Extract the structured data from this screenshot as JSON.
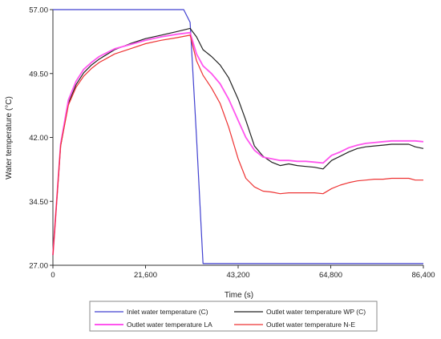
{
  "chart_data": {
    "type": "line",
    "xlabel": "Time (s)",
    "ylabel": "Water temperature (°C)",
    "xlim": [
      0,
      86400
    ],
    "ylim": [
      27.0,
      57.0
    ],
    "xticks": [
      "0",
      "21,600",
      "43,200",
      "64,800",
      "86,400"
    ],
    "xtick_values": [
      0,
      21600,
      43200,
      64800,
      86400
    ],
    "yticks": [
      "27.00",
      "34.50",
      "42.00",
      "49.50",
      "57.00"
    ],
    "ytick_values": [
      27.0,
      34.5,
      42.0,
      49.5,
      57.0
    ],
    "grid": false,
    "legend_position": "bottom",
    "series": [
      {
        "name": "Inlet water temperature (C)",
        "color": "#4040d0",
        "x": [
          0,
          30500,
          32000,
          33500,
          35000,
          86400
        ],
        "y": [
          57.0,
          57.0,
          55.5,
          42.0,
          27.2,
          27.2
        ]
      },
      {
        "name": "Outlet water temperature WP (C)",
        "color": "#222222",
        "x": [
          0,
          1800,
          3600,
          5400,
          7200,
          9000,
          10800,
          14400,
          18000,
          21600,
          25200,
          28800,
          32000,
          33500,
          35000,
          37000,
          39000,
          41000,
          43200,
          45000,
          47000,
          49000,
          51000,
          53000,
          55000,
          57000,
          59000,
          61000,
          63000,
          65000,
          67000,
          69000,
          71000,
          73000,
          75000,
          77000,
          79000,
          81000,
          83000,
          84500,
          86400
        ],
        "y": [
          28.2,
          41.0,
          46.0,
          48.2,
          49.6,
          50.5,
          51.2,
          52.3,
          53.0,
          53.6,
          54.0,
          54.4,
          54.8,
          53.8,
          52.3,
          51.5,
          50.5,
          49.0,
          46.5,
          44.0,
          41.0,
          39.8,
          39.1,
          38.7,
          38.9,
          38.7,
          38.6,
          38.5,
          38.3,
          39.3,
          39.8,
          40.3,
          40.7,
          40.9,
          41.0,
          41.1,
          41.2,
          41.2,
          41.2,
          40.9,
          40.7
        ]
      },
      {
        "name": "Outlet water temperature LA",
        "color": "#ff55ee",
        "x": [
          0,
          1800,
          3600,
          5400,
          7200,
          9000,
          10800,
          14400,
          18000,
          21600,
          25200,
          28800,
          32000,
          33500,
          35000,
          37000,
          39000,
          41000,
          43200,
          45000,
          47000,
          49000,
          51000,
          53000,
          55000,
          57000,
          59000,
          61000,
          63000,
          65000,
          67000,
          69000,
          71000,
          73000,
          75000,
          77000,
          79000,
          81000,
          83000,
          84500,
          86400
        ],
        "y": [
          28.2,
          41.2,
          46.4,
          48.6,
          50.0,
          50.8,
          51.5,
          52.4,
          52.9,
          53.4,
          53.8,
          54.1,
          54.3,
          51.8,
          50.4,
          49.5,
          48.3,
          46.5,
          44.0,
          42.0,
          40.5,
          39.7,
          39.5,
          39.3,
          39.3,
          39.2,
          39.2,
          39.1,
          39.0,
          39.9,
          40.3,
          40.8,
          41.1,
          41.3,
          41.4,
          41.5,
          41.6,
          41.6,
          41.6,
          41.6,
          41.5
        ]
      },
      {
        "name": "Outlet water temperature N-E",
        "color": "#ee3333",
        "x": [
          0,
          1800,
          3600,
          5400,
          7200,
          9000,
          10800,
          14400,
          18000,
          21600,
          25200,
          28800,
          32000,
          33500,
          35000,
          37000,
          39000,
          41000,
          43200,
          45000,
          47000,
          49000,
          51000,
          53000,
          55000,
          57000,
          59000,
          61000,
          63000,
          65000,
          67000,
          69000,
          71000,
          73000,
          75000,
          77000,
          79000,
          81000,
          83000,
          84500,
          86400
        ],
        "y": [
          28.2,
          41.0,
          45.8,
          47.9,
          49.2,
          50.1,
          50.8,
          51.8,
          52.4,
          53.0,
          53.4,
          53.7,
          54.0,
          51.0,
          49.3,
          47.8,
          46.0,
          43.2,
          39.5,
          37.2,
          36.2,
          35.7,
          35.6,
          35.4,
          35.5,
          35.5,
          35.5,
          35.5,
          35.4,
          36.0,
          36.4,
          36.7,
          36.9,
          37.0,
          37.1,
          37.1,
          37.2,
          37.2,
          37.2,
          37.0,
          37.0
        ]
      }
    ]
  }
}
